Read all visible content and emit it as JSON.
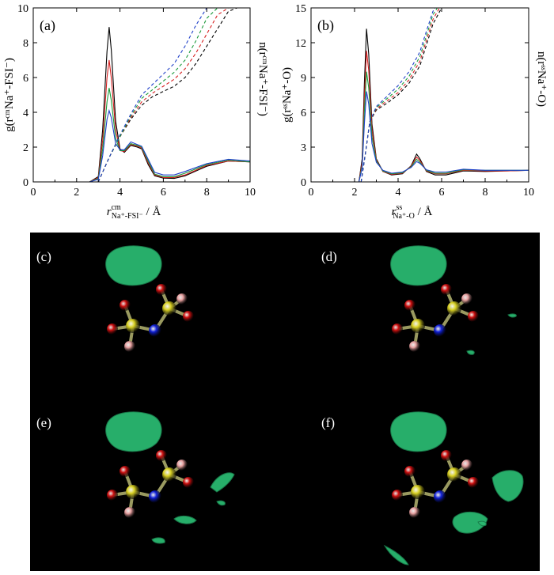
{
  "chart_data": [
    {
      "type": "line",
      "tag": "(a)",
      "xlabel_main": "r",
      "xlabel_sup": "cm",
      "xlabel_sub": "Na⁺-FSI⁻",
      "xlabel_unit": " / Å",
      "ylabel_left": "g(rᶜᵐNa⁺-FSI⁻)",
      "ylabel_right": "n(rᶜᵐNa⁺-FSI⁻)",
      "xlim": [
        0,
        10
      ],
      "ylim": [
        0,
        10
      ],
      "yticks": [
        0,
        2,
        4,
        6,
        8,
        10
      ],
      "xticks": [
        0,
        2,
        4,
        6,
        8,
        10
      ],
      "series": [
        {
          "color": "#000000",
          "style": "solid",
          "x": [
            2.6,
            3.0,
            3.2,
            3.4,
            3.5,
            3.6,
            3.8,
            4.0,
            4.2,
            4.5,
            4.8,
            5.0,
            5.3,
            5.6,
            6.0,
            6.5,
            7.0,
            8.0,
            9.0,
            10.0
          ],
          "y": [
            0,
            0.3,
            3.0,
            7.5,
            8.9,
            7.6,
            3.5,
            1.9,
            1.7,
            2.1,
            2.0,
            1.9,
            1.0,
            0.35,
            0.22,
            0.2,
            0.35,
            0.9,
            1.2,
            1.15
          ]
        },
        {
          "color": "#d62020",
          "style": "solid",
          "x": [
            2.6,
            3.0,
            3.2,
            3.4,
            3.5,
            3.6,
            3.8,
            4.0,
            4.2,
            4.5,
            4.8,
            5.0,
            5.3,
            5.6,
            6.0,
            6.5,
            7.0,
            8.0,
            9.0,
            10.0
          ],
          "y": [
            0,
            0.25,
            2.4,
            6.0,
            7.0,
            6.0,
            3.0,
            1.8,
            1.75,
            2.15,
            2.05,
            1.95,
            1.1,
            0.4,
            0.25,
            0.25,
            0.4,
            0.95,
            1.2,
            1.15
          ]
        },
        {
          "color": "#1a9a3a",
          "style": "solid",
          "x": [
            2.6,
            3.0,
            3.2,
            3.4,
            3.5,
            3.6,
            3.8,
            4.0,
            4.2,
            4.5,
            4.8,
            5.0,
            5.3,
            5.6,
            6.0,
            6.5,
            7.0,
            8.0,
            9.0,
            10.0
          ],
          "y": [
            0,
            0.2,
            1.9,
            4.6,
            5.4,
            4.7,
            2.5,
            1.8,
            1.8,
            2.2,
            2.1,
            2.0,
            1.2,
            0.45,
            0.3,
            0.3,
            0.5,
            1.0,
            1.25,
            1.15
          ]
        },
        {
          "color": "#2040c8",
          "style": "solid",
          "x": [
            2.6,
            3.0,
            3.2,
            3.4,
            3.5,
            3.6,
            3.8,
            4.0,
            4.2,
            4.5,
            4.8,
            5.0,
            5.3,
            5.6,
            6.0,
            6.5,
            7.0,
            8.0,
            9.0,
            10.0
          ],
          "y": [
            0,
            0.15,
            1.5,
            3.6,
            4.1,
            3.7,
            2.2,
            1.85,
            1.85,
            2.3,
            2.15,
            2.05,
            1.3,
            0.55,
            0.4,
            0.4,
            0.6,
            1.05,
            1.3,
            1.2
          ]
        },
        {
          "color": "#000000",
          "style": "dashed",
          "x": [
            3.0,
            3.5,
            4.0,
            4.5,
            5.0,
            5.5,
            6.0,
            6.5,
            7.0,
            7.5,
            8.0,
            8.5,
            9.0,
            9.4
          ],
          "y": [
            0,
            1.4,
            2.6,
            3.6,
            4.4,
            4.9,
            5.2,
            5.5,
            6.0,
            6.8,
            7.8,
            8.8,
            9.8,
            10
          ]
        },
        {
          "color": "#d62020",
          "style": "dashed",
          "x": [
            3.0,
            3.5,
            4.0,
            4.5,
            5.0,
            5.5,
            6.0,
            6.5,
            7.0,
            7.5,
            8.0,
            8.5,
            9.0
          ],
          "y": [
            0,
            1.4,
            2.6,
            3.7,
            4.6,
            5.1,
            5.5,
            5.9,
            6.5,
            7.4,
            8.5,
            9.6,
            10
          ]
        },
        {
          "color": "#1a9a3a",
          "style": "dashed",
          "x": [
            3.0,
            3.5,
            4.0,
            4.5,
            5.0,
            5.5,
            6.0,
            6.5,
            7.0,
            7.5,
            8.0,
            8.5
          ],
          "y": [
            0,
            1.4,
            2.6,
            3.8,
            4.8,
            5.3,
            5.8,
            6.3,
            7.0,
            8.1,
            9.4,
            10
          ]
        },
        {
          "color": "#2040c8",
          "style": "dashed",
          "x": [
            3.0,
            3.5,
            4.0,
            4.5,
            5.0,
            5.5,
            6.0,
            6.5,
            7.0,
            7.5,
            8.0
          ],
          "y": [
            0,
            1.4,
            2.7,
            3.9,
            5.0,
            5.6,
            6.2,
            6.8,
            7.8,
            9.0,
            10
          ]
        }
      ]
    },
    {
      "type": "line",
      "tag": "(b)",
      "xlabel_main": "r",
      "xlabel_sup": "ss",
      "xlabel_sub": "Na⁺-O",
      "xlabel_unit": " / Å",
      "ylabel_left": "g(rˢˢNa⁺-O)",
      "ylabel_right": "n(rˢˢNa⁺-O)",
      "xlim": [
        0,
        10
      ],
      "ylim": [
        0,
        15
      ],
      "yticks": [
        0,
        3,
        6,
        9,
        12,
        15
      ],
      "xticks": [
        0,
        2,
        4,
        6,
        8,
        10
      ],
      "series": [
        {
          "color": "#000000",
          "style": "solid",
          "x": [
            2.2,
            2.35,
            2.45,
            2.55,
            2.65,
            2.8,
            3.0,
            3.3,
            3.7,
            4.2,
            4.6,
            4.85,
            5.0,
            5.3,
            5.7,
            6.2,
            7.0,
            8.0,
            9.0,
            10.0
          ],
          "y": [
            0,
            2.0,
            8.5,
            13.2,
            11.0,
            5.0,
            2.0,
            0.9,
            0.6,
            0.7,
            1.4,
            2.4,
            2.0,
            0.9,
            0.6,
            0.6,
            0.95,
            0.9,
            0.95,
            1.0
          ]
        },
        {
          "color": "#d62020",
          "style": "solid",
          "x": [
            2.2,
            2.35,
            2.45,
            2.55,
            2.65,
            2.8,
            3.0,
            3.3,
            3.7,
            4.2,
            4.6,
            4.85,
            5.0,
            5.3,
            5.7,
            6.2,
            7.0,
            8.0,
            9.0,
            10.0
          ],
          "y": [
            0,
            1.7,
            7.3,
            11.3,
            9.6,
            4.5,
            1.9,
            0.9,
            0.65,
            0.75,
            1.35,
            2.15,
            1.85,
            0.95,
            0.7,
            0.7,
            1.0,
            0.95,
            0.95,
            1.0
          ]
        },
        {
          "color": "#1a9a3a",
          "style": "solid",
          "x": [
            2.2,
            2.35,
            2.45,
            2.55,
            2.65,
            2.8,
            3.0,
            3.3,
            3.7,
            4.2,
            4.6,
            4.85,
            5.0,
            5.3,
            5.7,
            6.2,
            7.0,
            8.0,
            9.0,
            10.0
          ],
          "y": [
            0,
            1.4,
            6.1,
            9.5,
            8.1,
            3.9,
            1.8,
            0.95,
            0.7,
            0.8,
            1.3,
            1.95,
            1.7,
            1.0,
            0.75,
            0.75,
            1.05,
            1.0,
            1.0,
            1.0
          ]
        },
        {
          "color": "#2040c8",
          "style": "solid",
          "x": [
            2.2,
            2.35,
            2.45,
            2.55,
            2.65,
            2.8,
            3.0,
            3.3,
            3.7,
            4.2,
            4.6,
            4.85,
            5.0,
            5.3,
            5.7,
            6.2,
            7.0,
            8.0,
            9.0,
            10.0
          ],
          "y": [
            0,
            1.2,
            5.0,
            7.8,
            6.7,
            3.3,
            1.7,
            1.0,
            0.75,
            0.85,
            1.25,
            1.75,
            1.6,
            1.05,
            0.85,
            0.85,
            1.1,
            1.0,
            1.0,
            1.0
          ]
        },
        {
          "color": "#000000",
          "style": "dashed",
          "x": [
            2.3,
            2.5,
            2.7,
            3.0,
            3.5,
            4.0,
            4.5,
            5.0,
            5.3,
            5.6,
            6.0
          ],
          "y": [
            0,
            2.5,
            5.2,
            6.2,
            6.8,
            7.5,
            8.5,
            10.0,
            11.8,
            13.6,
            15
          ]
        },
        {
          "color": "#d62020",
          "style": "dashed",
          "x": [
            2.3,
            2.5,
            2.7,
            3.0,
            3.5,
            4.0,
            4.5,
            5.0,
            5.3,
            5.6,
            5.9
          ],
          "y": [
            0,
            2.5,
            5.2,
            6.3,
            7.0,
            7.7,
            8.8,
            10.4,
            12.2,
            14.0,
            15
          ]
        },
        {
          "color": "#1a9a3a",
          "style": "dashed",
          "x": [
            2.3,
            2.5,
            2.7,
            3.0,
            3.5,
            4.0,
            4.5,
            5.0,
            5.3,
            5.6,
            5.8
          ],
          "y": [
            0,
            2.5,
            5.2,
            6.4,
            7.2,
            8.0,
            9.1,
            10.8,
            12.6,
            14.4,
            15
          ]
        },
        {
          "color": "#2040c8",
          "style": "dashed",
          "x": [
            2.3,
            2.5,
            2.7,
            3.0,
            3.5,
            4.0,
            4.5,
            5.0,
            5.3,
            5.6,
            5.7
          ],
          "y": [
            0,
            2.5,
            5.2,
            6.5,
            7.4,
            8.3,
            9.5,
            11.2,
            13.0,
            14.7,
            15
          ]
        }
      ]
    }
  ],
  "structures": {
    "tags": [
      "(c)",
      "(d)",
      "(e)",
      "(f)"
    ],
    "atom_colors": {
      "sulfur": "#d8d020",
      "oxygen": "#d01010",
      "fluorine": "#e8a0a0",
      "nitrogen": "#1020d8"
    },
    "isosurface_color": "#2ab870"
  }
}
